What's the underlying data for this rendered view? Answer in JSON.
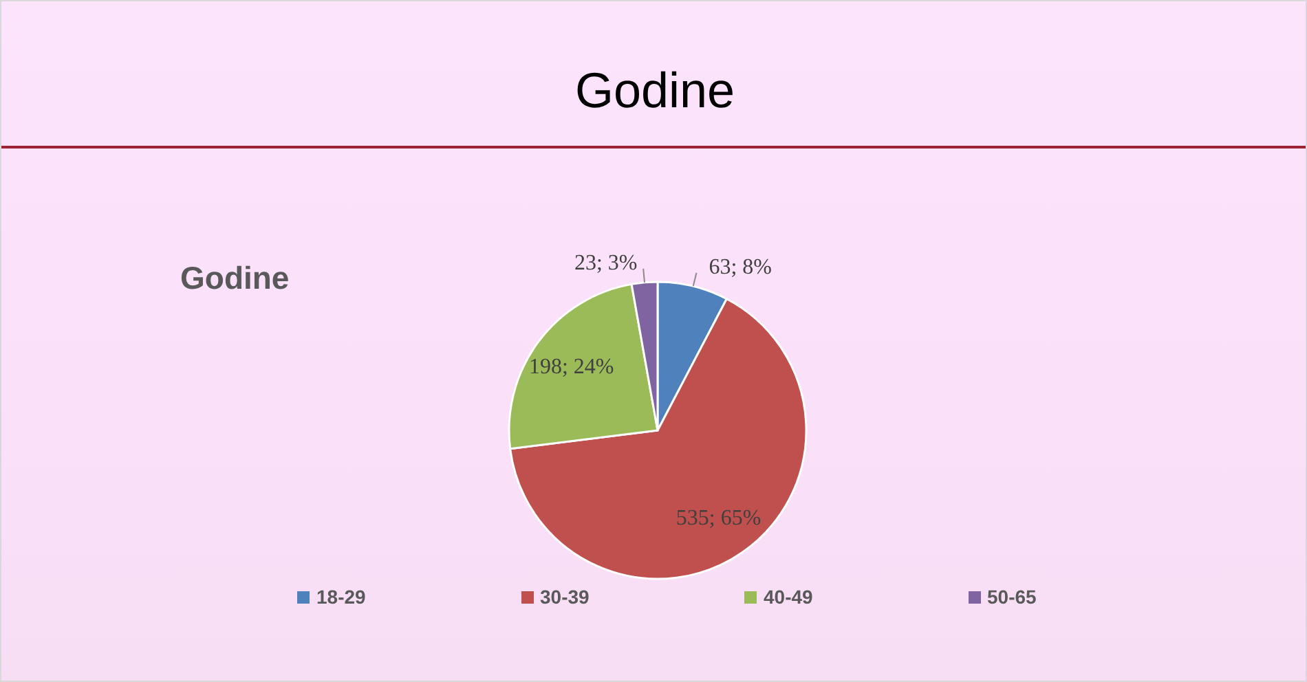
{
  "chart_data": {
    "type": "pie",
    "title": "Godine",
    "subtitle": "Godine",
    "categories": [
      "18-29",
      "30-39",
      "40-49",
      "50-65"
    ],
    "values": [
      63,
      535,
      198,
      23
    ],
    "colors": [
      "#4f81bd",
      "#c0504d",
      "#9bbb59",
      "#8064a2"
    ],
    "value_labels": [
      "63; 8%",
      "535; 65%",
      "198; 24%",
      "23; 3%"
    ],
    "legend": "bottom"
  }
}
